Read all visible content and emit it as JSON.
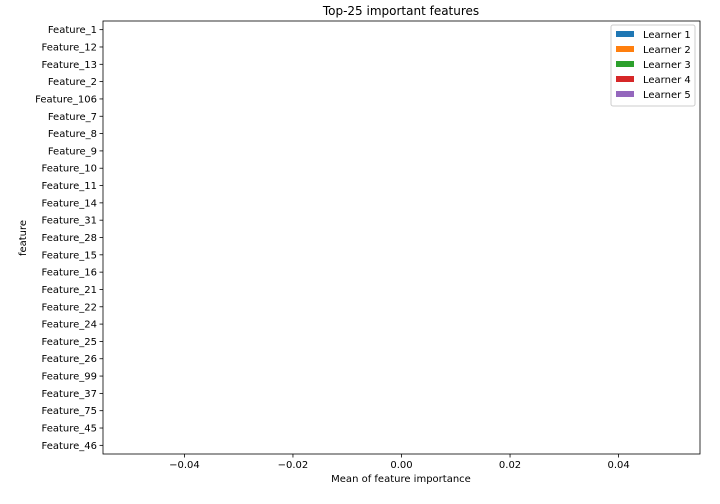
{
  "chart_data": {
    "type": "bar",
    "orientation": "horizontal",
    "title": "Top-25 important features",
    "xlabel": "Mean of feature importance",
    "ylabel": "feature",
    "xlim": [
      -0.055,
      0.055
    ],
    "xticks": [
      -0.04,
      -0.02,
      0.0,
      0.02,
      0.04
    ],
    "xtick_labels": [
      "−0.04",
      "−0.02",
      "0.00",
      "0.02",
      "0.04"
    ],
    "categories": [
      "Feature_1",
      "Feature_12",
      "Feature_13",
      "Feature_2",
      "Feature_106",
      "Feature_7",
      "Feature_8",
      "Feature_9",
      "Feature_10",
      "Feature_11",
      "Feature_14",
      "Feature_31",
      "Feature_28",
      "Feature_15",
      "Feature_16",
      "Feature_21",
      "Feature_22",
      "Feature_24",
      "Feature_25",
      "Feature_26",
      "Feature_99",
      "Feature_37",
      "Feature_75",
      "Feature_45",
      "Feature_46"
    ],
    "series": [
      {
        "name": "Learner 1",
        "color": "#1f77b4",
        "values": [
          0,
          0,
          0,
          0,
          0,
          0,
          0,
          0,
          0,
          0,
          0,
          0,
          0,
          0,
          0,
          0,
          0,
          0,
          0,
          0,
          0,
          0,
          0,
          0,
          0
        ]
      },
      {
        "name": "Learner 2",
        "color": "#ff7f0e",
        "values": [
          0,
          0,
          0,
          0,
          0,
          0,
          0,
          0,
          0,
          0,
          0,
          0,
          0,
          0,
          0,
          0,
          0,
          0,
          0,
          0,
          0,
          0,
          0,
          0,
          0
        ]
      },
      {
        "name": "Learner 3",
        "color": "#2ca02c",
        "values": [
          0,
          0,
          0,
          0,
          0,
          0,
          0,
          0,
          0,
          0,
          0,
          0,
          0,
          0,
          0,
          0,
          0,
          0,
          0,
          0,
          0,
          0,
          0,
          0,
          0
        ]
      },
      {
        "name": "Learner 4",
        "color": "#d62728",
        "values": [
          0,
          0,
          0,
          0,
          0,
          0,
          0,
          0,
          0,
          0,
          0,
          0,
          0,
          0,
          0,
          0,
          0,
          0,
          0,
          0,
          0,
          0,
          0,
          0,
          0
        ]
      },
      {
        "name": "Learner 5",
        "color": "#9467bd",
        "values": [
          0,
          0,
          0,
          0,
          0,
          0,
          0,
          0,
          0,
          0,
          0,
          0,
          0,
          0,
          0,
          0,
          0,
          0,
          0,
          0,
          0,
          0,
          0,
          0,
          0
        ]
      }
    ],
    "legend_position": "top-right",
    "grid": false
  }
}
